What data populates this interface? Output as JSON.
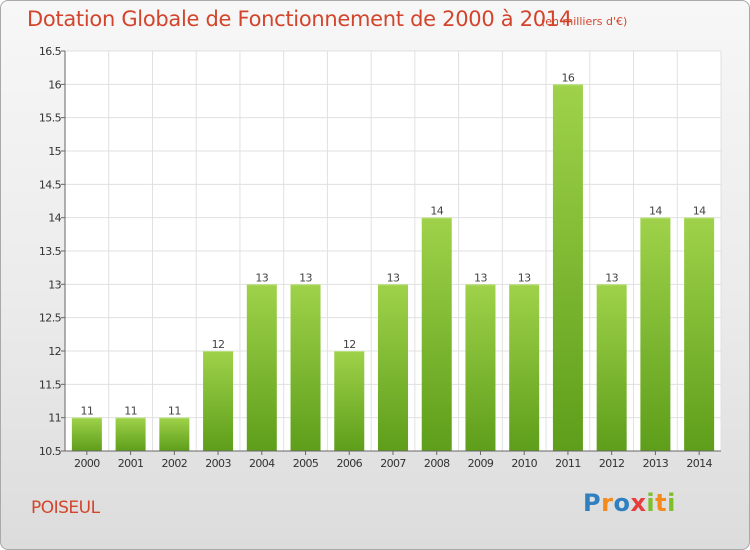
{
  "header": {
    "title": "Dotation Globale de Fonctionnement de 2000 à 2014",
    "subtitle": "(en milliers d'€)"
  },
  "footer": {
    "commune": "POISEUL",
    "logo_text": "Proxiti",
    "logo_colors": [
      "#2f7fc1",
      "#f28a1e",
      "#2f7fc1",
      "#e83d3d",
      "#7fbf2a",
      "#f28a1e",
      "#7fbf2a"
    ]
  },
  "colors": {
    "bar_top": "#9fd24a",
    "bar_bottom": "#5e9e1a",
    "title": "#d2452c",
    "grid": "#e0e0e0"
  },
  "chart_data": {
    "type": "bar",
    "title": "Dotation Globale de Fonctionnement de 2000 à 2014",
    "subtitle": "(en milliers d'€)",
    "xlabel": "",
    "ylabel": "",
    "categories": [
      "2000",
      "2001",
      "2002",
      "2003",
      "2004",
      "2005",
      "2006",
      "2007",
      "2008",
      "2009",
      "2010",
      "2011",
      "2012",
      "2013",
      "2014"
    ],
    "values": [
      11,
      11,
      11,
      12,
      13,
      13,
      12,
      13,
      14,
      13,
      13,
      16,
      13,
      14,
      14
    ],
    "data_labels": [
      "11",
      "11",
      "11",
      "12",
      "13",
      "13",
      "12",
      "13",
      "14",
      "13",
      "13",
      "16",
      "13",
      "14",
      "14"
    ],
    "ylim": [
      10.5,
      16.5
    ],
    "yticks": [
      10.5,
      11,
      11.5,
      12,
      12.5,
      13,
      13.5,
      14,
      14.5,
      15,
      15.5,
      16,
      16.5
    ],
    "ytick_labels": [
      "10.5",
      "11",
      "11.5",
      "12",
      "12.5",
      "13",
      "13.5",
      "14",
      "14.5",
      "15",
      "15.5",
      "16",
      "16.5"
    ],
    "grid": true,
    "legend": "none"
  }
}
